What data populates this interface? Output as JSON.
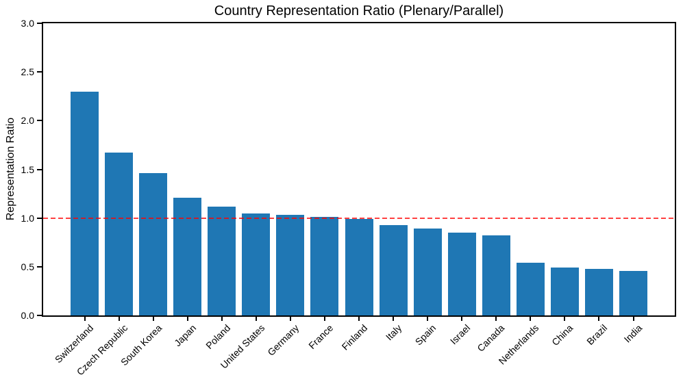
{
  "chart_data": {
    "type": "bar",
    "title": "Country Representation Ratio (Plenary/Parallel)",
    "xlabel": "",
    "ylabel": "Representation Ratio",
    "categories": [
      "Switzerland",
      "Czech Republic",
      "South Korea",
      "Japan",
      "Poland",
      "United States",
      "Germany",
      "France",
      "Finland",
      "Italy",
      "Spain",
      "Israel",
      "Canada",
      "Netherlands",
      "China",
      "Brazil",
      "India"
    ],
    "values": [
      2.3,
      1.67,
      1.46,
      1.21,
      1.12,
      1.05,
      1.03,
      1.01,
      0.99,
      0.93,
      0.89,
      0.85,
      0.82,
      0.54,
      0.49,
      0.48,
      0.46
    ],
    "ylim": [
      0,
      3.0
    ],
    "yticks": [
      "0.0",
      "0.5",
      "1.0",
      "1.5",
      "2.0",
      "2.5",
      "3.0"
    ],
    "x_tick_rotation": 45,
    "grid": false,
    "legend": false,
    "bar_color": "#1f77b4",
    "reference_line": {
      "value": 1.0,
      "color": "#ff0000",
      "style": "dashed"
    }
  }
}
